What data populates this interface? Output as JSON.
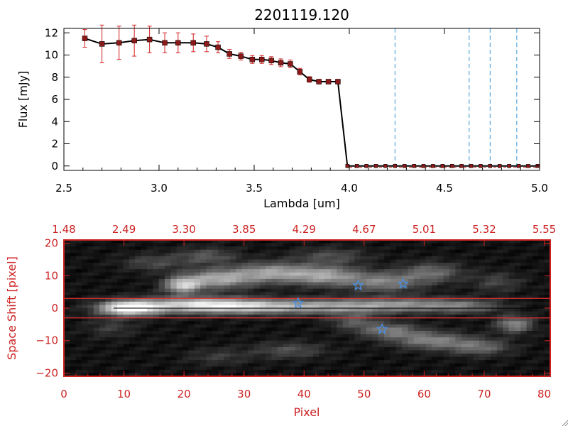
{
  "chart_data": [
    {
      "type": "line",
      "title": "2201119.120",
      "xlabel": "Lambda [um]",
      "ylabel": "Flux [mJy]",
      "xlim": [
        2.5,
        5.0
      ],
      "ylim": [
        -0.4,
        12.4
      ],
      "x_ticks": [
        "2.5",
        "3.0",
        "3.5",
        "4.0",
        "4.5",
        "5.0"
      ],
      "x_tick_values": [
        2.5,
        3.0,
        3.5,
        4.0,
        4.5,
        5.0
      ],
      "y_ticks": [
        "0",
        "2",
        "4",
        "6",
        "8",
        "10",
        "12"
      ],
      "y_tick_values": [
        0,
        2,
        4,
        6,
        8,
        10,
        12
      ],
      "series": [
        {
          "name": "Flux",
          "x": [
            2.61,
            2.7,
            2.79,
            2.87,
            2.95,
            3.03,
            3.1,
            3.18,
            3.25,
            3.31,
            3.37,
            3.43,
            3.49,
            3.54,
            3.59,
            3.64,
            3.69,
            3.74,
            3.79,
            3.84,
            3.89,
            3.94,
            3.99,
            4.04,
            4.09,
            4.14,
            4.19,
            4.24,
            4.29,
            4.34,
            4.39,
            4.44,
            4.49,
            4.54,
            4.59,
            4.64,
            4.69,
            4.74,
            4.79,
            4.84,
            4.89,
            4.94,
            4.99
          ],
          "y": [
            11.5,
            11.0,
            11.1,
            11.3,
            11.4,
            11.1,
            11.1,
            11.1,
            11.0,
            10.7,
            10.1,
            9.9,
            9.6,
            9.6,
            9.5,
            9.3,
            9.2,
            8.5,
            7.8,
            7.6,
            7.6,
            7.6,
            0,
            0,
            0,
            0,
            0,
            0,
            0,
            0,
            0,
            0,
            0,
            0,
            0,
            0,
            0,
            0,
            0,
            0,
            0,
            0,
            0
          ],
          "yerr": [
            0.8,
            1.7,
            1.5,
            1.4,
            1.2,
            0.9,
            0.9,
            0.8,
            0.7,
            0.5,
            0.4,
            0.35,
            0.35,
            0.35,
            0.35,
            0.35,
            0.35,
            0.3,
            0.25,
            0.2,
            0.2,
            0.2,
            0,
            0,
            0,
            0,
            0,
            0,
            0,
            0,
            0,
            0,
            0,
            0,
            0,
            0,
            0,
            0,
            0,
            0,
            0,
            0,
            0
          ]
        }
      ],
      "vlines": [
        4.24,
        4.63,
        4.74,
        4.88
      ],
      "vline_style": "dashed",
      "marker": "square",
      "colors": {
        "line": "#000000",
        "marker": "#8b1a1a",
        "error": "#d42020",
        "vline": "#3a9ad9",
        "axes": "#000000"
      }
    },
    {
      "type": "heatmap",
      "xlabel": "Pixel",
      "ylabel": "Space Shift [pixel]",
      "xlim": [
        0,
        81
      ],
      "ylim": [
        -21,
        21
      ],
      "x_ticks": [
        "0",
        "10",
        "20",
        "30",
        "40",
        "50",
        "60",
        "70",
        "80"
      ],
      "x_tick_values": [
        0,
        10,
        20,
        30,
        40,
        50,
        60,
        70,
        80
      ],
      "y_ticks": [
        "−20",
        "−10",
        "0",
        "10",
        "20"
      ],
      "y_tick_values": [
        -20,
        -10,
        0,
        10,
        20
      ],
      "top_axis_ticks": [
        "1.48",
        "2.49",
        "3.30",
        "3.85",
        "4.29",
        "4.67",
        "5.01",
        "5.32",
        "5.55"
      ],
      "top_axis_tick_values": [
        0,
        10,
        20,
        30,
        40,
        50,
        60,
        70,
        80
      ],
      "hlines": [
        3,
        -3
      ],
      "stars": [
        {
          "x": 39,
          "y": 1.5
        },
        {
          "x": 49,
          "y": 7
        },
        {
          "x": 56.5,
          "y": 7.5
        },
        {
          "x": 53,
          "y": -6.5
        }
      ],
      "colors": {
        "axes": "#cc2222",
        "hline": "#e03030",
        "star": "#4a90e2"
      }
    }
  ]
}
